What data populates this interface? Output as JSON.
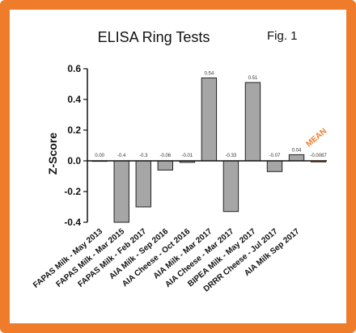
{
  "chart_data": {
    "type": "bar",
    "title": "ELISA Ring Tests",
    "figure_label": "Fig. 1",
    "ylabel": "Z-Score",
    "xlabel": "",
    "ylim": [
      -0.4,
      0.6
    ],
    "yticks": [
      "-0.4",
      "-0.2",
      "0.0",
      "0.2",
      "0.4",
      "0.6"
    ],
    "categories": [
      "FAPAS Milk - May 2013",
      "FAPAS Milk - Mar 2015",
      "FAPAS Milk - Feb 2017",
      "AIA Milk - Sep 2016",
      "AIA Cheese - Oct 2016",
      "AIA Milk - Mar 2017",
      "AIA Cheese - Mar 2017",
      "BIPEA Milk - May 2017",
      "DRRR Cheese - Jul 2017",
      "AIA Milk Sep 2017",
      ""
    ],
    "values": [
      0.0,
      -0.4,
      -0.3,
      -0.06,
      -0.01,
      0.54,
      -0.33,
      0.51,
      -0.07,
      0.04,
      -0.0087
    ],
    "data_labels": [
      "0.00",
      "-0.4",
      "-0.3",
      "-0.06",
      "-0.01",
      "0.54",
      "-0.33",
      "0.51",
      "-0.07",
      "0.04",
      "-0.0087"
    ],
    "mean_label": "MEAN",
    "bar_color": "#a6a6a6",
    "mean_bar_color": "#ee7c2b",
    "mean_label_color": "#ee7c2b",
    "grid": false
  },
  "colors": {
    "border": "#ee7c2b",
    "background": "#ffffff"
  }
}
